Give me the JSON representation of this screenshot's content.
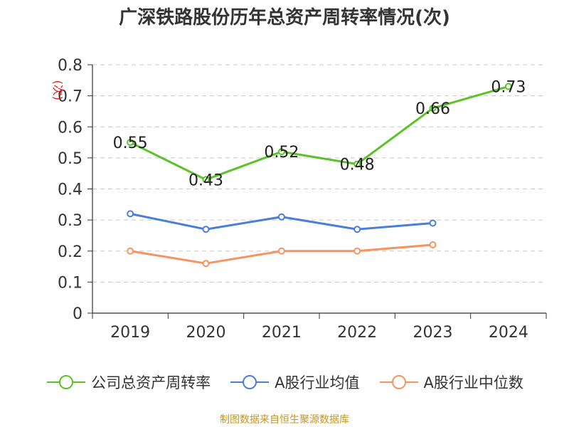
{
  "title": "广深铁路股份历年总资产周转率情况(次)",
  "footer": "制图数据来自恒生聚源数据库",
  "chart_data": {
    "type": "line",
    "title": "广深铁路股份历年总资产周转率情况(次)",
    "ylabel": "(次)",
    "xlabel": "",
    "categories": [
      "2019",
      "2020",
      "2021",
      "2022",
      "2023",
      "2024"
    ],
    "ylim": [
      0,
      0.8
    ],
    "yticks": [
      0,
      0.1,
      0.2,
      0.3,
      0.4,
      0.5,
      0.6,
      0.7,
      0.8
    ],
    "ytick_labels": [
      "0",
      "0.1",
      "0.2",
      "0.3",
      "0.4",
      "0.5",
      "0.6",
      "0.7",
      "0.8"
    ],
    "grid": true,
    "legend_position": "bottom",
    "series": [
      {
        "name": "公司总资产周转率",
        "color": "#5bc22a",
        "values": [
          0.55,
          0.43,
          0.52,
          0.48,
          0.66,
          0.73
        ],
        "data_labels": [
          "0.55",
          "0.43",
          "0.52",
          "0.48",
          "0.66",
          "0.73"
        ]
      },
      {
        "name": "A股行业均值",
        "color": "#4a7fd8",
        "values": [
          0.32,
          0.27,
          0.31,
          0.27,
          0.29,
          null
        ]
      },
      {
        "name": "A股行业中位数",
        "color": "#f79361",
        "values": [
          0.2,
          0.16,
          0.2,
          0.2,
          0.22,
          null
        ]
      }
    ]
  }
}
